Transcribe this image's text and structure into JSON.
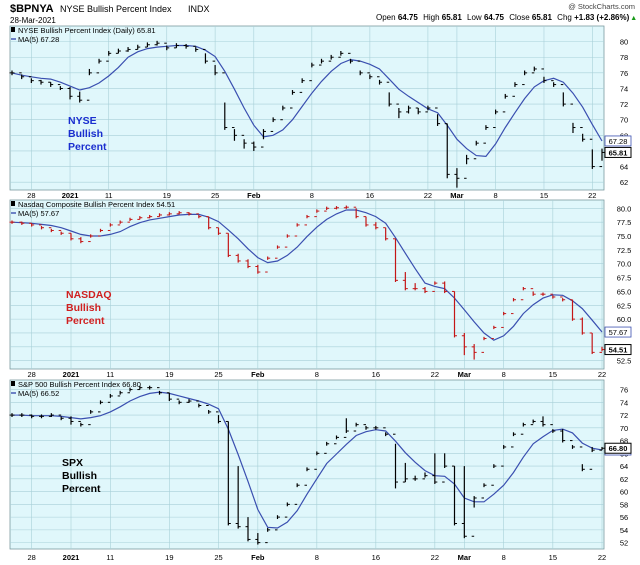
{
  "header": {
    "symbol": "$BPNYA",
    "title": "NYSE Bullish Percent Index",
    "exchange": "INDX",
    "date": "28-Mar-2021",
    "quote": {
      "open_label": "Open",
      "open": "64.75",
      "high_label": "High",
      "high": "65.81",
      "low_label": "Low",
      "low": "64.75",
      "close_label": "Close",
      "close": "65.81",
      "chg_label": "Chg",
      "chg": "+1.83 (+2.86%)",
      "chg_arrow": "▲"
    },
    "brand": "@ StockCharts.com"
  },
  "x_axis": {
    "ticks": [
      {
        "label": "28",
        "bold": false
      },
      {
        "label": "2021",
        "bold": true
      },
      {
        "label": "11",
        "bold": false
      },
      {
        "label": "19",
        "bold": false
      },
      {
        "label": "25",
        "bold": false
      },
      {
        "label": "Feb",
        "bold": true
      },
      {
        "label": "8",
        "bold": false
      },
      {
        "label": "16",
        "bold": false
      },
      {
        "label": "22",
        "bold": false
      },
      {
        "label": "Mar",
        "bold": true
      },
      {
        "label": "8",
        "bold": false
      },
      {
        "label": "15",
        "bold": false
      },
      {
        "label": "22",
        "bold": false
      }
    ]
  },
  "colors": {
    "plot_bg": "#e0f7fb",
    "grid": "#a8d0d8",
    "ma_line": "#3a4fb0",
    "up_bar": "#000000",
    "nyse_label": "#1a2ecf",
    "nasdaq_label": "#d02020",
    "nasdaq_bar": "#c41616",
    "spx_label": "#000000"
  },
  "chart_data": [
    {
      "type": "ohlc",
      "name": "NYSE Bullish Percent Index (Daily)",
      "legend_title": "NYSE Bullish Percent Index (Daily) 65.81",
      "legend_ma": "MA(5) 67.28",
      "side_label": [
        "NYSE",
        "Bullish",
        "Percent"
      ],
      "y_ticks": [
        "80",
        "78",
        "76",
        "74",
        "72",
        "70",
        "68",
        "66",
        "64",
        "62"
      ],
      "ylim": [
        61,
        82
      ],
      "last_close": "65.81",
      "last_ma": "67.28",
      "closes": [
        76.0,
        75.5,
        75.0,
        74.8,
        74.5,
        74.0,
        73.0,
        72.5,
        76.0,
        77.5,
        78.5,
        78.8,
        79.0,
        79.3,
        79.6,
        79.8,
        79.2,
        79.5,
        79.4,
        79.0,
        77.5,
        76.0,
        69.0,
        68.0,
        67.0,
        66.5,
        68.5,
        70.0,
        71.5,
        73.5,
        75.0,
        77.0,
        77.5,
        78.0,
        78.5,
        77.5,
        76.0,
        75.5,
        74.8,
        72.0,
        71.0,
        71.5,
        71.0,
        71.5,
        69.5,
        63.0,
        62.5,
        65.0,
        67.0,
        69.0,
        71.0,
        73.0,
        74.5,
        76.0,
        76.5,
        75.0,
        74.5,
        72.0,
        69.0,
        67.5,
        64.0,
        65.81
      ],
      "highs": [
        76.3,
        75.8,
        75.3,
        75.1,
        74.8,
        74.3,
        74.2,
        73.6,
        76.5,
        77.8,
        78.8,
        79.1,
        79.3,
        79.6,
        79.9,
        80.1,
        79.5,
        79.8,
        79.7,
        79.3,
        78.5,
        77.0,
        72.2,
        68.8,
        67.5,
        67.2,
        68.8,
        70.3,
        71.8,
        73.8,
        75.3,
        77.3,
        77.8,
        78.3,
        78.8,
        77.8,
        76.3,
        75.8,
        75.1,
        73.5,
        71.5,
        71.8,
        71.5,
        71.8,
        70.7,
        69.5,
        63.8,
        65.5,
        67.3,
        69.3,
        71.3,
        73.3,
        74.8,
        76.3,
        76.8,
        75.5,
        74.8,
        73.5,
        69.6,
        68.2,
        66.2,
        66.3
      ],
      "lows": [
        75.7,
        75.2,
        74.7,
        74.5,
        74.2,
        73.8,
        72.6,
        72.2,
        75.7,
        77.2,
        78.2,
        78.5,
        78.7,
        79.0,
        79.3,
        79.5,
        78.9,
        79.2,
        79.1,
        78.7,
        77.2,
        75.7,
        68.7,
        67.3,
        66.3,
        66.0,
        67.5,
        69.7,
        71.2,
        73.2,
        74.7,
        76.7,
        77.2,
        77.7,
        78.2,
        77.2,
        75.7,
        75.2,
        74.5,
        71.7,
        70.2,
        70.8,
        70.7,
        71.2,
        69.2,
        62.5,
        61.3,
        64.3,
        66.7,
        68.7,
        70.7,
        72.7,
        74.2,
        75.7,
        76.2,
        74.7,
        74.2,
        71.7,
        68.3,
        67.2,
        63.7,
        64.75
      ],
      "ma": [
        76.0,
        75.7,
        75.5,
        75.3,
        75.2,
        74.8,
        74.3,
        73.8,
        74.1,
        74.7,
        75.6,
        76.7,
        78.0,
        78.7,
        79.1,
        79.3,
        79.4,
        79.5,
        79.5,
        79.4,
        78.9,
        78.1,
        76.2,
        73.9,
        71.5,
        69.3,
        67.8,
        68.0,
        68.7,
        70.0,
        71.7,
        73.4,
        74.9,
        76.2,
        77.2,
        77.7,
        77.5,
        77.1,
        76.5,
        75.2,
        73.9,
        73.0,
        72.2,
        71.4,
        70.9,
        69.3,
        67.5,
        66.3,
        65.4,
        65.3,
        66.9,
        69.0,
        70.9,
        72.7,
        74.2,
        75.0,
        75.3,
        74.8,
        73.4,
        71.6,
        69.4,
        67.28
      ]
    },
    {
      "type": "ohlc",
      "name": "Nasdaq Composite Bullish Percent Index",
      "legend_title": "Nasdaq Composite Bullish Percent Index 54.51",
      "legend_ma": "MA(5) 57.67",
      "side_label": [
        "NASDAQ",
        "Bullish",
        "Percent"
      ],
      "y_ticks": [
        "80.0",
        "77.5",
        "75.0",
        "72.5",
        "70.0",
        "67.5",
        "65.0",
        "62.5",
        "60.0",
        "57.5",
        "55.0",
        "52.5"
      ],
      "ylim": [
        51,
        81.5
      ],
      "last_close": "54.51",
      "last_ma": "57.67",
      "closes": [
        77.5,
        77.3,
        77.0,
        76.5,
        76.0,
        75.5,
        74.5,
        74.0,
        75.0,
        76.0,
        77.0,
        77.5,
        78.0,
        78.3,
        78.5,
        78.8,
        79.0,
        79.2,
        79.0,
        78.5,
        76.5,
        75.5,
        71.5,
        70.5,
        69.5,
        68.5,
        71.0,
        73.0,
        75.0,
        77.0,
        78.5,
        79.5,
        80.0,
        80.1,
        80.2,
        78.5,
        77.0,
        76.5,
        74.5,
        67.0,
        65.5,
        65.5,
        65.0,
        66.5,
        65.0,
        57.0,
        55.0,
        54.0,
        56.5,
        58.5,
        61.0,
        63.5,
        65.5,
        64.5,
        64.5,
        64.0,
        63.5,
        60.0,
        57.5,
        54.0,
        54.51
      ],
      "highs": [
        77.8,
        77.6,
        77.3,
        76.8,
        76.3,
        75.8,
        75.5,
        74.8,
        75.3,
        76.3,
        77.3,
        77.8,
        78.3,
        78.6,
        78.8,
        79.1,
        79.3,
        79.5,
        79.3,
        78.8,
        78.5,
        76.5,
        75.5,
        71.8,
        70.8,
        69.8,
        71.3,
        73.3,
        75.3,
        77.3,
        78.8,
        79.8,
        80.3,
        80.4,
        80.5,
        80.0,
        78.5,
        77.5,
        76.5,
        74.5,
        68.5,
        66.5,
        65.8,
        66.8,
        66.8,
        65.0,
        57.5,
        55.5,
        56.8,
        58.8,
        61.3,
        63.8,
        65.8,
        65.0,
        64.8,
        64.3,
        63.8,
        63.5,
        60.3,
        57.5,
        55.0
      ],
      "lows": [
        77.2,
        77.0,
        76.7,
        76.2,
        75.7,
        75.2,
        74.2,
        73.7,
        74.7,
        75.7,
        76.7,
        77.2,
        77.7,
        78.0,
        78.2,
        78.5,
        78.7,
        78.9,
        78.7,
        78.2,
        76.2,
        75.2,
        71.2,
        70.2,
        69.2,
        68.2,
        70.7,
        72.7,
        74.7,
        76.7,
        78.2,
        79.2,
        79.7,
        79.8,
        79.9,
        78.2,
        76.7,
        76.2,
        74.2,
        66.7,
        65.2,
        65.2,
        64.7,
        66.2,
        64.7,
        56.7,
        53.5,
        52.7,
        56.2,
        58.2,
        60.7,
        63.2,
        65.2,
        64.2,
        64.2,
        63.7,
        63.2,
        59.7,
        57.2,
        53.7,
        54.2
      ],
      "ma": [
        77.5,
        77.4,
        77.3,
        77.1,
        76.9,
        76.5,
        75.9,
        75.3,
        75.0,
        75.0,
        75.3,
        75.8,
        76.7,
        77.4,
        77.9,
        78.2,
        78.5,
        78.8,
        78.9,
        78.9,
        78.4,
        77.6,
        76.1,
        74.5,
        72.7,
        71.1,
        70.2,
        70.5,
        71.5,
        73.0,
        74.9,
        76.6,
        78.0,
        79.0,
        79.7,
        79.7,
        79.2,
        78.5,
        77.3,
        74.7,
        71.9,
        69.1,
        66.5,
        65.9,
        65.5,
        63.8,
        61.7,
        59.5,
        57.5,
        56.2,
        57.0,
        58.7,
        61.0,
        62.6,
        63.8,
        64.4,
        64.3,
        63.3,
        61.9,
        59.8,
        57.67
      ]
    },
    {
      "type": "ohlc",
      "name": "S&P 500 Bullish Percent Index",
      "legend_title": "S&P 500 Bullish Percent Index 66.80",
      "legend_ma": "MA(5) 66.52",
      "side_label": [
        "SPX",
        "Bullish",
        "Percent"
      ],
      "y_ticks": [
        "76",
        "74",
        "72",
        "70",
        "68",
        "66",
        "64",
        "62",
        "60",
        "58",
        "56",
        "54",
        "52"
      ],
      "ylim": [
        51,
        77.5
      ],
      "last_close": "66.80",
      "last_ma": "66.52",
      "closes": [
        72.0,
        72.0,
        71.8,
        71.8,
        72.0,
        71.5,
        71.0,
        70.5,
        72.5,
        74.0,
        75.0,
        75.5,
        76.0,
        76.3,
        76.3,
        75.5,
        74.5,
        74.0,
        74.2,
        73.5,
        72.5,
        71.0,
        55.0,
        54.5,
        52.5,
        52.0,
        54.0,
        56.0,
        58.0,
        61.0,
        63.5,
        66.0,
        67.5,
        68.5,
        69.5,
        70.5,
        70.0,
        70.0,
        69.0,
        61.5,
        62.0,
        62.0,
        62.5,
        61.5,
        64.0,
        55.0,
        53.0,
        59.0,
        61.0,
        64.0,
        67.0,
        69.0,
        70.5,
        71.0,
        70.5,
        69.5,
        68.0,
        67.0,
        63.5,
        66.5,
        66.8
      ],
      "highs": [
        72.3,
        72.3,
        72.1,
        72.1,
        72.3,
        71.8,
        71.8,
        70.8,
        72.8,
        74.3,
        75.3,
        75.8,
        76.3,
        76.6,
        76.6,
        75.8,
        75.5,
        74.3,
        74.5,
        73.8,
        72.8,
        72.0,
        71.0,
        64.0,
        56.0,
        53.5,
        54.3,
        56.3,
        58.3,
        61.3,
        63.8,
        66.3,
        67.8,
        68.8,
        71.5,
        70.8,
        70.3,
        70.3,
        69.3,
        67.5,
        64.5,
        62.5,
        63.0,
        66.0,
        66.0,
        64.0,
        64.0,
        59.3,
        61.3,
        64.3,
        67.3,
        69.3,
        70.8,
        71.3,
        71.8,
        69.8,
        69.8,
        67.3,
        64.3,
        67.0,
        67.0
      ],
      "lows": [
        71.7,
        71.7,
        71.5,
        71.5,
        71.7,
        71.2,
        70.5,
        70.2,
        72.2,
        73.7,
        74.7,
        75.2,
        75.7,
        76.0,
        76.0,
        75.2,
        74.2,
        73.7,
        73.9,
        73.2,
        72.2,
        70.7,
        54.7,
        54.2,
        52.2,
        51.7,
        53.7,
        55.7,
        57.7,
        60.7,
        63.2,
        65.7,
        67.2,
        68.2,
        69.2,
        70.2,
        69.7,
        69.7,
        68.7,
        60.5,
        61.5,
        61.7,
        62.2,
        61.2,
        63.7,
        54.7,
        52.7,
        57.5,
        60.7,
        63.7,
        66.7,
        68.7,
        70.2,
        70.7,
        70.2,
        69.2,
        67.7,
        66.7,
        63.2,
        66.2,
        66.5
      ],
      "ma": [
        72.0,
        72.0,
        71.9,
        71.9,
        71.9,
        71.8,
        71.6,
        71.4,
        71.6,
        71.9,
        72.5,
        73.3,
        74.2,
        74.9,
        75.4,
        75.6,
        75.4,
        75.0,
        74.6,
        74.2,
        73.7,
        73.0,
        69.8,
        65.8,
        61.6,
        57.2,
        54.4,
        54.3,
        55.2,
        57.0,
        59.6,
        62.0,
        64.4,
        65.9,
        67.4,
        68.8,
        69.4,
        69.7,
        69.5,
        67.9,
        66.1,
        64.6,
        63.3,
        62.5,
        62.4,
        61.2,
        59.0,
        58.4,
        58.4,
        59.6,
        61.0,
        63.0,
        65.4,
        67.5,
        68.6,
        69.6,
        69.8,
        69.2,
        67.6,
        66.8,
        66.52
      ]
    }
  ]
}
